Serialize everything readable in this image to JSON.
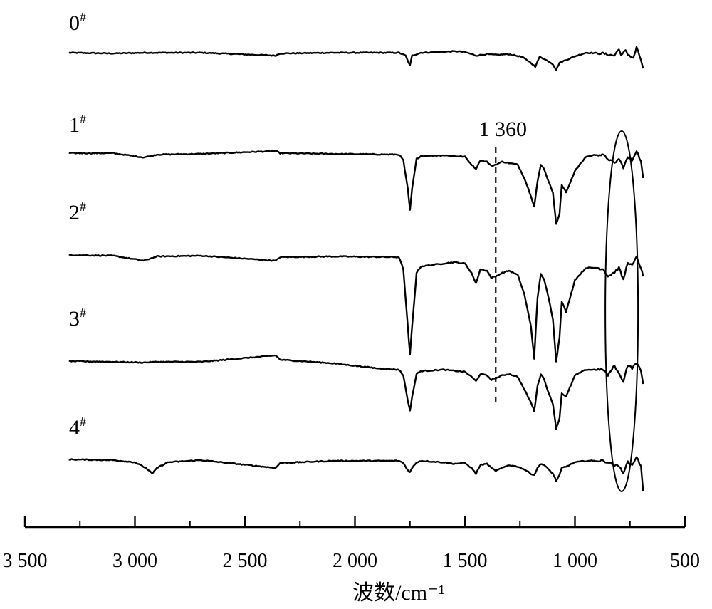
{
  "chart_data": {
    "type": "line",
    "xlabel": "波数/cm⁻¹",
    "xlim": [
      3500,
      500
    ],
    "x_reversed": true,
    "x_ticks": [
      {
        "value": 3500,
        "label": "3 500"
      },
      {
        "value": 3000,
        "label": "3 000"
      },
      {
        "value": 2500,
        "label": "2 500"
      },
      {
        "value": 2000,
        "label": "2 000"
      },
      {
        "value": 1500,
        "label": "1 500"
      },
      {
        "value": 1000,
        "label": "1 000"
      },
      {
        "value": 500,
        "label": "500"
      }
    ],
    "minor_ticks": [
      3250,
      2750,
      2250,
      1750,
      1250,
      750
    ],
    "grid": false,
    "legend": "none",
    "line_color": "#000000",
    "series": [
      {
        "name": "0#",
        "label_main": "0",
        "label_sup": "#",
        "points": [
          [
            3300,
            0
          ],
          [
            3100,
            -1
          ],
          [
            2950,
            0
          ],
          [
            2700,
            0
          ],
          [
            2360,
            -4
          ],
          [
            2340,
            -1
          ],
          [
            2100,
            0
          ],
          [
            1800,
            0
          ],
          [
            1770,
            -4
          ],
          [
            1750,
            -18
          ],
          [
            1740,
            -4
          ],
          [
            1700,
            0
          ],
          [
            1540,
            2
          ],
          [
            1500,
            1
          ],
          [
            1450,
            -4
          ],
          [
            1400,
            -2
          ],
          [
            1360,
            -3
          ],
          [
            1300,
            -2
          ],
          [
            1240,
            -6
          ],
          [
            1200,
            -14
          ],
          [
            1180,
            -20
          ],
          [
            1160,
            -5
          ],
          [
            1140,
            -9
          ],
          [
            1120,
            -12
          ],
          [
            1100,
            -16
          ],
          [
            1085,
            -24
          ],
          [
            1070,
            -14
          ],
          [
            1000,
            -5
          ],
          [
            950,
            0
          ],
          [
            870,
            -1
          ],
          [
            860,
            -2
          ],
          [
            820,
            -4
          ],
          [
            800,
            6
          ],
          [
            790,
            -5
          ],
          [
            770,
            4
          ],
          [
            760,
            -2
          ],
          [
            735,
            -8
          ],
          [
            720,
            7
          ],
          [
            700,
            -10
          ],
          [
            690,
            -22
          ]
        ]
      },
      {
        "name": "1#",
        "label_main": "1",
        "label_sup": "#",
        "points": [
          [
            3300,
            0
          ],
          [
            3100,
            0
          ],
          [
            2960,
            -6
          ],
          [
            2900,
            -2
          ],
          [
            2700,
            -1
          ],
          [
            2360,
            3
          ],
          [
            2340,
            0
          ],
          [
            2100,
            -1
          ],
          [
            1800,
            -2
          ],
          [
            1780,
            -10
          ],
          [
            1760,
            -50
          ],
          [
            1750,
            -80
          ],
          [
            1740,
            -50
          ],
          [
            1720,
            -8
          ],
          [
            1700,
            -4
          ],
          [
            1600,
            -3
          ],
          [
            1500,
            -5
          ],
          [
            1470,
            -16
          ],
          [
            1450,
            -22
          ],
          [
            1430,
            -10
          ],
          [
            1400,
            -12
          ],
          [
            1380,
            -18
          ],
          [
            1360,
            -16
          ],
          [
            1330,
            -12
          ],
          [
            1300,
            -14
          ],
          [
            1260,
            -16
          ],
          [
            1230,
            -35
          ],
          [
            1200,
            -60
          ],
          [
            1185,
            -75
          ],
          [
            1170,
            -40
          ],
          [
            1155,
            -16
          ],
          [
            1140,
            -22
          ],
          [
            1120,
            -40
          ],
          [
            1100,
            -55
          ],
          [
            1085,
            -100
          ],
          [
            1070,
            -85
          ],
          [
            1060,
            -45
          ],
          [
            1040,
            -55
          ],
          [
            1000,
            -25
          ],
          [
            950,
            -5
          ],
          [
            900,
            -2
          ],
          [
            870,
            -3
          ],
          [
            850,
            -8
          ],
          [
            820,
            -14
          ],
          [
            800,
            -8
          ],
          [
            780,
            -20
          ],
          [
            760,
            -6
          ],
          [
            740,
            -10
          ],
          [
            720,
            4
          ],
          [
            700,
            -12
          ],
          [
            690,
            -35
          ]
        ]
      },
      {
        "name": "2#",
        "label_main": "2",
        "label_sup": "#",
        "points": [
          [
            3300,
            0
          ],
          [
            3100,
            -1
          ],
          [
            2960,
            -8
          ],
          [
            2900,
            -2
          ],
          [
            2700,
            -1
          ],
          [
            2360,
            -8
          ],
          [
            2340,
            -3
          ],
          [
            2100,
            -2
          ],
          [
            1800,
            -3
          ],
          [
            1780,
            -20
          ],
          [
            1760,
            -100
          ],
          [
            1750,
            -140
          ],
          [
            1740,
            -100
          ],
          [
            1720,
            -25
          ],
          [
            1700,
            -16
          ],
          [
            1600,
            -12
          ],
          [
            1550,
            -10
          ],
          [
            1500,
            -12
          ],
          [
            1470,
            -25
          ],
          [
            1450,
            -40
          ],
          [
            1430,
            -20
          ],
          [
            1400,
            -22
          ],
          [
            1380,
            -32
          ],
          [
            1360,
            -30
          ],
          [
            1330,
            -25
          ],
          [
            1300,
            -22
          ],
          [
            1260,
            -28
          ],
          [
            1230,
            -55
          ],
          [
            1200,
            -100
          ],
          [
            1185,
            -145
          ],
          [
            1170,
            -60
          ],
          [
            1155,
            -26
          ],
          [
            1140,
            -35
          ],
          [
            1120,
            -60
          ],
          [
            1100,
            -90
          ],
          [
            1085,
            -150
          ],
          [
            1070,
            -115
          ],
          [
            1060,
            -65
          ],
          [
            1040,
            -80
          ],
          [
            1000,
            -35
          ],
          [
            950,
            -18
          ],
          [
            900,
            -18
          ],
          [
            870,
            -20
          ],
          [
            850,
            -30
          ],
          [
            820,
            -24
          ],
          [
            800,
            -18
          ],
          [
            780,
            -35
          ],
          [
            760,
            -10
          ],
          [
            740,
            -15
          ],
          [
            720,
            -3
          ],
          [
            700,
            -18
          ],
          [
            690,
            -30
          ]
        ]
      },
      {
        "name": "3#",
        "label_main": "3",
        "label_sup": "#",
        "points": [
          [
            3300,
            0
          ],
          [
            3100,
            -1
          ],
          [
            2960,
            -2
          ],
          [
            2900,
            -1
          ],
          [
            2700,
            -1
          ],
          [
            2360,
            8
          ],
          [
            2340,
            2
          ],
          [
            2100,
            -3
          ],
          [
            1900,
            -10
          ],
          [
            1800,
            -12
          ],
          [
            1780,
            -20
          ],
          [
            1760,
            -55
          ],
          [
            1750,
            -70
          ],
          [
            1740,
            -50
          ],
          [
            1720,
            -18
          ],
          [
            1700,
            -14
          ],
          [
            1600,
            -12
          ],
          [
            1500,
            -15
          ],
          [
            1470,
            -22
          ],
          [
            1450,
            -28
          ],
          [
            1430,
            -18
          ],
          [
            1400,
            -20
          ],
          [
            1380,
            -26
          ],
          [
            1360,
            -24
          ],
          [
            1330,
            -20
          ],
          [
            1300,
            -18
          ],
          [
            1260,
            -22
          ],
          [
            1230,
            -40
          ],
          [
            1200,
            -58
          ],
          [
            1185,
            -70
          ],
          [
            1170,
            -35
          ],
          [
            1155,
            -18
          ],
          [
            1140,
            -25
          ],
          [
            1120,
            -45
          ],
          [
            1100,
            -60
          ],
          [
            1085,
            -95
          ],
          [
            1070,
            -80
          ],
          [
            1060,
            -45
          ],
          [
            1040,
            -50
          ],
          [
            1000,
            -20
          ],
          [
            950,
            -12
          ],
          [
            900,
            -12
          ],
          [
            870,
            -12
          ],
          [
            850,
            -20
          ],
          [
            820,
            -6
          ],
          [
            800,
            -18
          ],
          [
            780,
            -28
          ],
          [
            760,
            -5
          ],
          [
            740,
            -10
          ],
          [
            720,
            -2
          ],
          [
            700,
            -14
          ],
          [
            690,
            -32
          ]
        ]
      },
      {
        "name": "4#",
        "label_main": "4",
        "label_sup": "#",
        "points": [
          [
            3300,
            0
          ],
          [
            3100,
            -1
          ],
          [
            3000,
            -4
          ],
          [
            2950,
            -12
          ],
          [
            2920,
            -20
          ],
          [
            2900,
            -12
          ],
          [
            2850,
            -4
          ],
          [
            2700,
            -1
          ],
          [
            2360,
            -12
          ],
          [
            2340,
            -5
          ],
          [
            2100,
            -2
          ],
          [
            1800,
            -2
          ],
          [
            1780,
            -5
          ],
          [
            1760,
            -15
          ],
          [
            1750,
            -18
          ],
          [
            1740,
            -12
          ],
          [
            1720,
            -4
          ],
          [
            1700,
            -2
          ],
          [
            1600,
            -4
          ],
          [
            1550,
            -6
          ],
          [
            1500,
            -5
          ],
          [
            1470,
            -12
          ],
          [
            1450,
            -20
          ],
          [
            1430,
            -8
          ],
          [
            1400,
            -6
          ],
          [
            1380,
            -12
          ],
          [
            1360,
            -16
          ],
          [
            1330,
            -12
          ],
          [
            1300,
            -8
          ],
          [
            1260,
            -10
          ],
          [
            1230,
            -14
          ],
          [
            1200,
            -20
          ],
          [
            1185,
            -22
          ],
          [
            1170,
            -12
          ],
          [
            1155,
            -6
          ],
          [
            1140,
            -8
          ],
          [
            1120,
            -14
          ],
          [
            1100,
            -20
          ],
          [
            1085,
            -30
          ],
          [
            1070,
            -22
          ],
          [
            1060,
            -12
          ],
          [
            1040,
            -10
          ],
          [
            1000,
            -4
          ],
          [
            950,
            -2
          ],
          [
            900,
            -2
          ],
          [
            870,
            -2
          ],
          [
            850,
            -4
          ],
          [
            820,
            -8
          ],
          [
            800,
            -10
          ],
          [
            780,
            -18
          ],
          [
            760,
            -4
          ],
          [
            740,
            -8
          ],
          [
            720,
            4
          ],
          [
            700,
            -10
          ],
          [
            690,
            -45
          ]
        ]
      }
    ],
    "annotations": [
      {
        "type": "dashed-vline",
        "x": 1360,
        "label": "1 360"
      },
      {
        "type": "ellipse",
        "x_center": 820
      }
    ]
  }
}
